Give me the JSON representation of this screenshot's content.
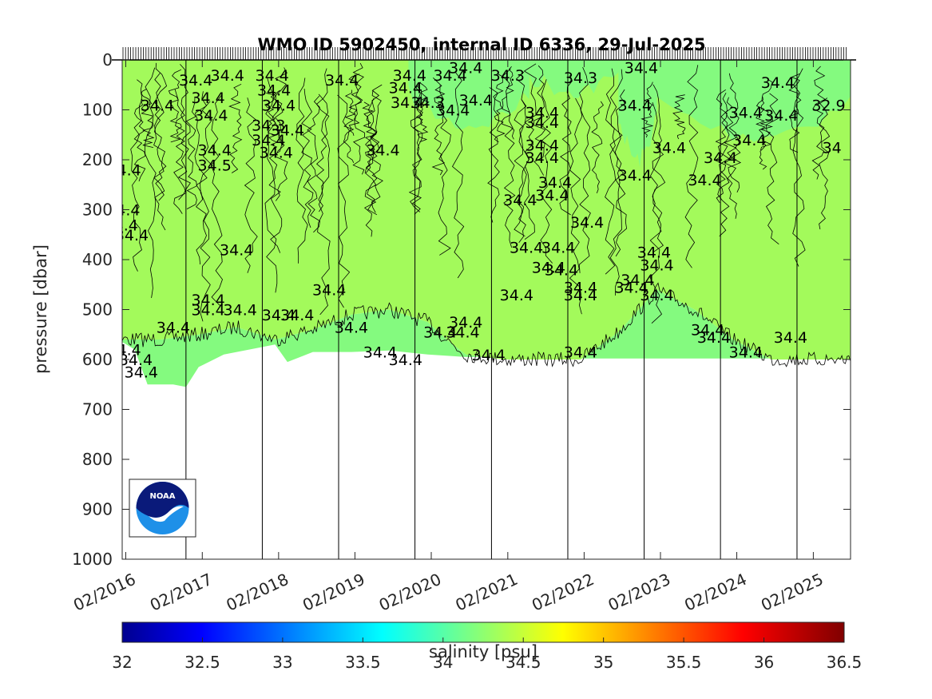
{
  "chart_data": {
    "type": "heatmap",
    "title": "WMO ID 5902450, internal ID 6336, 29-Jul-2025",
    "xlabel": "",
    "ylabel": "pressure [dbar]",
    "colorbar_label": "salinity [psu]",
    "x_ticks": [
      "02/2016",
      "02/2017",
      "02/2018",
      "02/2019",
      "02/2020",
      "02/2021",
      "02/2022",
      "02/2023",
      "02/2024",
      "02/2025"
    ],
    "x_range": [
      "2016-01-15",
      "2025-07-29"
    ],
    "y_ticks": [
      0,
      100,
      200,
      300,
      400,
      500,
      600,
      700,
      800,
      900,
      1000
    ],
    "y_range": [
      0,
      1000
    ],
    "y_reversed": true,
    "colorbar_ticks": [
      32,
      32.5,
      33,
      33.5,
      34,
      34.5,
      35,
      35.5,
      36,
      36.5
    ],
    "colorbar_range": [
      32,
      36.5
    ],
    "colormap": "jet",
    "fill_upper_color": "#a3fa5b",
    "fill_lower_color": "#84fa7f",
    "fill_upper_value": 34.4,
    "fill_lower_value": 34.3,
    "logo": "noaa-logo",
    "profile_bottom_pressure": [
      {
        "date": "2016-01-15",
        "pressure": 565
      },
      {
        "date": "2016-03-15",
        "pressure": 580
      },
      {
        "date": "2016-05-15",
        "pressure": 650
      },
      {
        "date": "2016-09-15",
        "pressure": 650
      },
      {
        "date": "2016-11-15",
        "pressure": 655
      },
      {
        "date": "2017-01-15",
        "pressure": 615
      },
      {
        "date": "2017-05-15",
        "pressure": 590
      },
      {
        "date": "2017-09-15",
        "pressure": 580
      },
      {
        "date": "2018-01-15",
        "pressure": 570
      },
      {
        "date": "2018-03-15",
        "pressure": 605
      },
      {
        "date": "2018-07-15",
        "pressure": 585
      },
      {
        "date": "2019-01-15",
        "pressure": 585
      },
      {
        "date": "2019-07-15",
        "pressure": 582
      },
      {
        "date": "2020-01-15",
        "pressure": 590
      },
      {
        "date": "2020-07-15",
        "pressure": 595
      },
      {
        "date": "2021-01-15",
        "pressure": 595
      },
      {
        "date": "2022-01-15",
        "pressure": 598
      },
      {
        "date": "2023-01-15",
        "pressure": 598
      },
      {
        "date": "2024-01-15",
        "pressure": 598
      },
      {
        "date": "2025-07-29",
        "pressure": 598
      }
    ],
    "layer_boundary_pressure": [
      {
        "date": "2016-01-15",
        "pressure": 560
      },
      {
        "date": "2016-07-15",
        "pressure": 560
      },
      {
        "date": "2017-01-15",
        "pressure": 550
      },
      {
        "date": "2017-07-15",
        "pressure": 535
      },
      {
        "date": "2018-01-15",
        "pressure": 560
      },
      {
        "date": "2018-07-15",
        "pressure": 540
      },
      {
        "date": "2019-01-15",
        "pressure": 510
      },
      {
        "date": "2019-07-15",
        "pressure": 500
      },
      {
        "date": "2020-01-15",
        "pressure": 525
      },
      {
        "date": "2020-04-15",
        "pressure": 560
      },
      {
        "date": "2020-07-15",
        "pressure": 590
      },
      {
        "date": "2021-01-15",
        "pressure": 600
      },
      {
        "date": "2022-01-15",
        "pressure": 600
      },
      {
        "date": "2022-07-15",
        "pressure": 545
      },
      {
        "date": "2023-01-15",
        "pressure": 460
      },
      {
        "date": "2023-07-15",
        "pressure": 500
      },
      {
        "date": "2024-01-15",
        "pressure": 560
      },
      {
        "date": "2024-07-15",
        "pressure": 600
      },
      {
        "date": "2025-07-29",
        "pressure": 600
      }
    ],
    "surface_fresh_patches": [
      {
        "start": "2019-10-15",
        "end": "2021-05-15",
        "depth": 130
      },
      {
        "start": "2021-05-15",
        "end": "2022-07-15",
        "depth": 60
      },
      {
        "start": "2022-07-15",
        "end": "2023-01-15",
        "depth": 200
      },
      {
        "start": "2023-01-15",
        "end": "2025-07-29",
        "depth": 150
      }
    ],
    "contour_labels": [
      {
        "text": "34.4",
        "date": "2016-07-01",
        "pressure": 90
      },
      {
        "text": "34.4",
        "date": "2017-01-01",
        "pressure": 40
      },
      {
        "text": "34.4",
        "date": "2017-03-01",
        "pressure": 75
      },
      {
        "text": "34.4",
        "date": "2017-03-15",
        "pressure": 110
      },
      {
        "text": "34.4",
        "date": "2017-06-01",
        "pressure": 30
      },
      {
        "text": "34.4",
        "date": "2018-01-01",
        "pressure": 30
      },
      {
        "text": "34.4",
        "date": "2018-01-10",
        "pressure": 60
      },
      {
        "text": "34.4",
        "date": "2018-02-01",
        "pressure": 90
      },
      {
        "text": "34.3",
        "date": "2017-12-15",
        "pressure": 130
      },
      {
        "text": "34.4",
        "date": "2018-03-15",
        "pressure": 140
      },
      {
        "text": "34.4",
        "date": "2017-12-15",
        "pressure": 160
      },
      {
        "text": "34.4",
        "date": "2018-01-20",
        "pressure": 185
      },
      {
        "text": "34.4",
        "date": "2017-04-01",
        "pressure": 180
      },
      {
        "text": "34.5",
        "date": "2017-04-01",
        "pressure": 210
      },
      {
        "text": "34.4",
        "date": "2016-01-25",
        "pressure": 220
      },
      {
        "text": "34.4",
        "date": "2016-01-20",
        "pressure": 300
      },
      {
        "text": "34.4",
        "date": "2016-01-10",
        "pressure": 330
      },
      {
        "text": "34.4",
        "date": "2016-03-01",
        "pressure": 350
      },
      {
        "text": "34.4",
        "date": "2017-07-15",
        "pressure": 380
      },
      {
        "text": "34.4",
        "date": "2017-03-01",
        "pressure": 480
      },
      {
        "text": "34.4",
        "date": "2017-03-01",
        "pressure": 500
      },
      {
        "text": "34.4",
        "date": "2017-08-01",
        "pressure": 500
      },
      {
        "text": "34.4",
        "date": "2018-02-01",
        "pressure": 510
      },
      {
        "text": "34.4",
        "date": "2018-05-01",
        "pressure": 510
      },
      {
        "text": "34.4",
        "date": "2018-10-01",
        "pressure": 460
      },
      {
        "text": "34.4",
        "date": "2016-09-15",
        "pressure": 535
      },
      {
        "text": "34.4",
        "date": "2016-01-25",
        "pressure": 580
      },
      {
        "text": "34.4",
        "date": "2016-03-20",
        "pressure": 600
      },
      {
        "text": "34.4",
        "date": "2016-04-15",
        "pressure": 625
      },
      {
        "text": "34.4",
        "date": "2018-12-01",
        "pressure": 40
      },
      {
        "text": "34.4",
        "date": "2019-10-20",
        "pressure": 30
      },
      {
        "text": "34.4",
        "date": "2019-10-01",
        "pressure": 55
      },
      {
        "text": "34.4",
        "date": "2019-10-10",
        "pressure": 85
      },
      {
        "text": "34.3",
        "date": "2020-01-15",
        "pressure": 85
      },
      {
        "text": "34.4",
        "date": "2020-07-15",
        "pressure": 15
      },
      {
        "text": "34.4",
        "date": "2020-05-01",
        "pressure": 30
      },
      {
        "text": "34.3",
        "date": "2021-02-01",
        "pressure": 30
      },
      {
        "text": "34.4",
        "date": "2020-09-01",
        "pressure": 80
      },
      {
        "text": "34.4",
        "date": "2020-05-15",
        "pressure": 100
      },
      {
        "text": "34.4",
        "date": "2019-06-15",
        "pressure": 180
      },
      {
        "text": "34.3",
        "date": "2022-01-15",
        "pressure": 35
      },
      {
        "text": "34.4",
        "date": "2021-07-15",
        "pressure": 105
      },
      {
        "text": "34.4",
        "date": "2021-07-15",
        "pressure": 125
      },
      {
        "text": "34.4",
        "date": "2021-07-15",
        "pressure": 170
      },
      {
        "text": "34.4",
        "date": "2021-07-15",
        "pressure": 195
      },
      {
        "text": "34.4",
        "date": "2021-09-15",
        "pressure": 245
      },
      {
        "text": "34.4",
        "date": "2021-09-01",
        "pressure": 270
      },
      {
        "text": "34.4",
        "date": "2021-04-01",
        "pressure": 280
      },
      {
        "text": "34.4",
        "date": "2022-02-15",
        "pressure": 325
      },
      {
        "text": "34.4",
        "date": "2021-05-01",
        "pressure": 375
      },
      {
        "text": "34.4",
        "date": "2021-10-01",
        "pressure": 375
      },
      {
        "text": "34.4",
        "date": "2021-08-15",
        "pressure": 415
      },
      {
        "text": "34.4",
        "date": "2021-10-15",
        "pressure": 420
      },
      {
        "text": "34.4",
        "date": "2021-03-15",
        "pressure": 470
      },
      {
        "text": "34.4",
        "date": "2022-01-15",
        "pressure": 455
      },
      {
        "text": "34.4",
        "date": "2022-01-15",
        "pressure": 470
      },
      {
        "text": "34.4",
        "date": "2022-09-15",
        "pressure": 455
      },
      {
        "text": "34.4",
        "date": "2022-10-01",
        "pressure": 230
      },
      {
        "text": "34.4",
        "date": "2022-10-01",
        "pressure": 90
      },
      {
        "text": "34.4",
        "date": "2022-11-01",
        "pressure": 15
      },
      {
        "text": "34.4",
        "date": "2023-03-15",
        "pressure": 175
      },
      {
        "text": "34.4",
        "date": "2023-11-15",
        "pressure": 195
      },
      {
        "text": "34.4",
        "date": "2023-09-01",
        "pressure": 240
      },
      {
        "text": "34.4",
        "date": "2023-01-01",
        "pressure": 385
      },
      {
        "text": "34.4",
        "date": "2023-01-15",
        "pressure": 410
      },
      {
        "text": "34.4",
        "date": "2022-10-15",
        "pressure": 440
      },
      {
        "text": "34.4",
        "date": "2023-01-15",
        "pressure": 470
      },
      {
        "text": "34.4",
        "date": "2024-08-15",
        "pressure": 45
      },
      {
        "text": "34.4",
        "date": "2024-03-15",
        "pressure": 105
      },
      {
        "text": "34.4",
        "date": "2024-09-01",
        "pressure": 110
      },
      {
        "text": "34.4",
        "date": "2024-04-01",
        "pressure": 160
      },
      {
        "text": "32.9",
        "date": "2025-04-15",
        "pressure": 90
      },
      {
        "text": "34",
        "date": "2025-05-01",
        "pressure": 175
      },
      {
        "text": "34.4",
        "date": "2023-09-15",
        "pressure": 540
      },
      {
        "text": "34.4",
        "date": "2023-10-15",
        "pressure": 555
      },
      {
        "text": "34.4",
        "date": "2024-03-15",
        "pressure": 585
      },
      {
        "text": "34.4",
        "date": "2024-10-15",
        "pressure": 555
      },
      {
        "text": "34.4",
        "date": "2022-01-15",
        "pressure": 585
      },
      {
        "text": "34.4",
        "date": "2020-11-01",
        "pressure": 590
      },
      {
        "text": "34.4",
        "date": "2020-03-15",
        "pressure": 545
      },
      {
        "text": "34.4",
        "date": "2020-07-01",
        "pressure": 545
      },
      {
        "text": "34.4",
        "date": "2020-07-15",
        "pressure": 525
      },
      {
        "text": "34.4",
        "date": "2019-01-15",
        "pressure": 535
      },
      {
        "text": "34.4",
        "date": "2019-06-01",
        "pressure": 585
      },
      {
        "text": "34.4",
        "date": "2019-10-01",
        "pressure": 600
      }
    ],
    "grid": false,
    "colorbar_position": "bottom"
  }
}
